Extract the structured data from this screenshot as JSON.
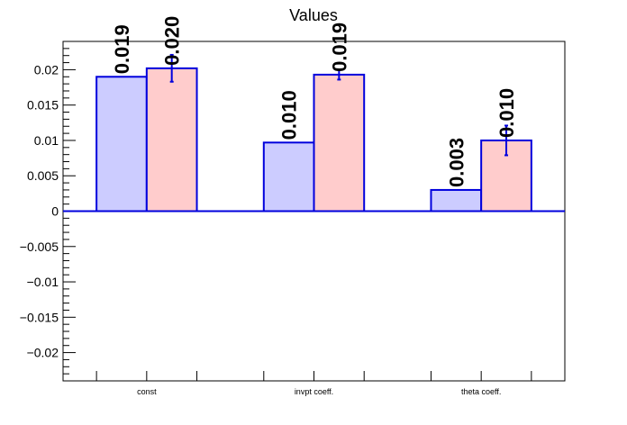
{
  "chart_data": {
    "type": "bar",
    "title": "Values",
    "xlabel": "",
    "ylabel": "",
    "ylim": [
      -0.024,
      0.024
    ],
    "categories": [
      "const",
      "invpt coeff.",
      "theta coeff."
    ],
    "yticks": [
      {
        "value": 0.02,
        "label": "0.02"
      },
      {
        "value": 0.015,
        "label": "0.015"
      },
      {
        "value": 0.01,
        "label": "0.01"
      },
      {
        "value": 0.005,
        "label": "0.005"
      },
      {
        "value": 0,
        "label": "0"
      },
      {
        "value": -0.005,
        "label": "−0.005"
      },
      {
        "value": -0.01,
        "label": "−0.01"
      },
      {
        "value": -0.015,
        "label": "−0.015"
      },
      {
        "value": -0.02,
        "label": "−0.02"
      }
    ],
    "grid": false,
    "legend": "none",
    "series": [
      {
        "fill": "#ccccff",
        "stroke": "#0000dd",
        "values": [
          0.019,
          0.0097,
          0.003
        ],
        "labels": [
          "0.019",
          "0.010",
          "0.003"
        ],
        "errors": [
          0,
          0,
          0
        ]
      },
      {
        "fill": "#ffcccc",
        "stroke": "#0000dd",
        "values": [
          0.0202,
          0.0193,
          0.01
        ],
        "labels": [
          "0.020",
          "0.019",
          "0.010"
        ],
        "errors": [
          0.0019,
          0.0007,
          0.0021
        ]
      }
    ]
  },
  "colors": {
    "axis": "#000000",
    "bar_stroke": "#0000dd",
    "error_bar": "#0000dd",
    "zero_line": "#0000dd"
  }
}
